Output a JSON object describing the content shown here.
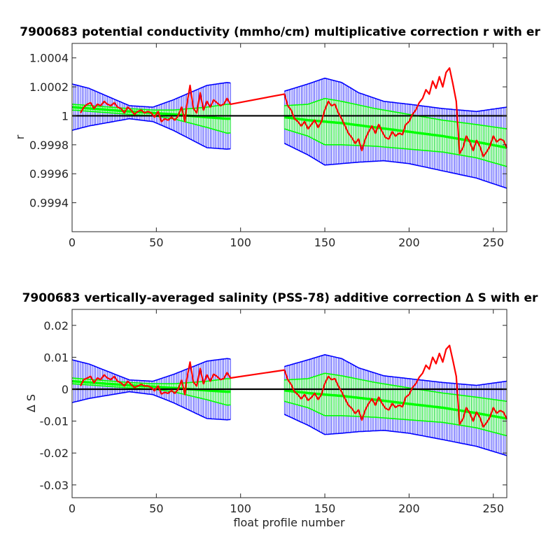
{
  "chart_data": [
    {
      "type": "line",
      "title": "7900683 potential conductivity (mmho/cm) multiplicative correction r with er",
      "xlabel": "",
      "ylabel": "r",
      "xlim": [
        0,
        258
      ],
      "ylim": [
        0.9992,
        1.0005
      ],
      "x_ticks": [
        0,
        50,
        100,
        150,
        200,
        250
      ],
      "x_tick_labels": [
        "0",
        "50",
        "100",
        "150",
        "200",
        "250"
      ],
      "y_ticks": [
        0.9994,
        0.9996,
        0.9998,
        1.0,
        1.0002,
        1.0004
      ],
      "y_tick_labels": [
        "0.9994",
        "0.9996",
        "0.9998",
        "1",
        "1.0002",
        "1.0004"
      ],
      "grid": false,
      "reference_line": 1.0,
      "colors": {
        "raw": "#ff0000",
        "fit": "#00ff00",
        "error": "#0000ff",
        "reference": "#000000"
      },
      "series": [
        {
          "role": "raw",
          "x": [
            5,
            7,
            9,
            11,
            13,
            15,
            17,
            19,
            21,
            23,
            25,
            27,
            29,
            31,
            33,
            35,
            37,
            39,
            41,
            43,
            45,
            47,
            49,
            51,
            53,
            55,
            57,
            59,
            61,
            63,
            65,
            67,
            68,
            70,
            72,
            74,
            76,
            78,
            80,
            82,
            84,
            86,
            88,
            90,
            92,
            94,
            126,
            128,
            130,
            132,
            134,
            136,
            138,
            140,
            142,
            144,
            146,
            148,
            150,
            152,
            154,
            156,
            158,
            160,
            162,
            164,
            166,
            168,
            170,
            172,
            174,
            176,
            178,
            180,
            182,
            184,
            186,
            188,
            190,
            192,
            194,
            196,
            198,
            200,
            202,
            204,
            206,
            208,
            210,
            212,
            214,
            216,
            218,
            220,
            222,
            224,
            226,
            228,
            230,
            232,
            234,
            236,
            238,
            240,
            242,
            244,
            246,
            248,
            250,
            252,
            254,
            256,
            258
          ],
          "values": [
            1.00002,
            1.00006,
            1.00008,
            1.00009,
            1.00005,
            1.00008,
            1.00007,
            1.0001,
            1.00008,
            1.00007,
            1.00009,
            1.00006,
            1.00005,
            1.00002,
            1.00006,
            1.00004,
            1.00001,
            1.00003,
            1.00004,
            1.00002,
            1.00003,
            1.00002,
            0.99999,
            1.00003,
            0.99996,
            0.99998,
            0.99997,
            0.99999,
            0.99997,
            1.0,
            1.00006,
            0.99996,
            1.00007,
            1.00021,
            1.00005,
            1.00002,
            1.00016,
            1.00004,
            1.0001,
            1.00006,
            1.00011,
            1.00009,
            1.00007,
            1.00008,
            1.00012,
            1.00008,
            1.00015,
            1.00007,
            1.00004,
            0.99998,
            0.99996,
            0.99993,
            0.99996,
            0.99991,
            0.99994,
            0.99997,
            0.99992,
            0.99996,
            1.00004,
            1.0001,
            1.00007,
            1.00008,
            1.00002,
            0.99998,
            0.99993,
            0.99988,
            0.99985,
            0.99981,
            0.99984,
            0.99976,
            0.99984,
            0.99989,
            0.99993,
            0.99988,
            0.99994,
            0.99989,
            0.99985,
            0.99984,
            0.99989,
            0.99986,
            0.99988,
            0.99987,
            0.99994,
            0.99996,
            1.00001,
            1.00004,
            1.00009,
            1.00012,
            1.00018,
            1.00015,
            1.00024,
            1.00019,
            1.00027,
            1.0002,
            1.0003,
            1.00033,
            1.00022,
            1.0001,
            0.99974,
            0.99978,
            0.99986,
            0.99982,
            0.99976,
            0.99983,
            0.99979,
            0.99972,
            0.99975,
            0.99979,
            0.99986,
            0.99982,
            0.99984,
            0.99983,
            0.99978
          ]
        },
        {
          "role": "fit",
          "x": [
            0,
            34,
            48,
            60,
            80,
            92,
            126,
            140,
            150,
            160,
            180,
            200,
            220,
            240,
            258
          ],
          "values": [
            1.00006,
            1.00003,
            1.00002,
            1.00001,
            0.99999,
            0.99998,
            0.99999,
            0.99997,
            0.99996,
            0.99995,
            0.99992,
            0.99989,
            0.99986,
            0.99982,
            0.99978
          ]
        },
        {
          "role": "fit_upper",
          "x": [
            0,
            34,
            48,
            60,
            80,
            92,
            126,
            140,
            150,
            160,
            180,
            200,
            220,
            240,
            258
          ],
          "values": [
            1.00008,
            1.00005,
            1.00004,
            1.00004,
            1.00006,
            1.00008,
            1.00007,
            1.00008,
            1.00012,
            1.0001,
            1.00005,
            1.00001,
            0.99997,
            0.99994,
            0.99991
          ]
        },
        {
          "role": "fit_lower",
          "x": [
            0,
            34,
            48,
            60,
            80,
            92,
            126,
            140,
            150,
            160,
            180,
            200,
            220,
            240,
            258
          ],
          "values": [
            1.00004,
            1.00001,
            1.0,
            0.99998,
            0.99992,
            0.99988,
            0.99991,
            0.99986,
            0.9998,
            0.9998,
            0.99979,
            0.99977,
            0.99975,
            0.99971,
            0.99965
          ]
        },
        {
          "role": "error_upper",
          "x": [
            0,
            10,
            34,
            48,
            60,
            70,
            80,
            92,
            126,
            140,
            150,
            160,
            170,
            185,
            200,
            220,
            240,
            258
          ],
          "values": [
            1.00022,
            1.00019,
            1.00007,
            1.00006,
            1.00011,
            1.00016,
            1.00021,
            1.00023,
            1.00017,
            1.00022,
            1.00026,
            1.00023,
            1.00016,
            1.0001,
            1.00008,
            1.00005,
            1.00003,
            1.00006
          ]
        },
        {
          "role": "error_lower",
          "x": [
            0,
            10,
            34,
            48,
            60,
            70,
            80,
            92,
            126,
            140,
            150,
            160,
            170,
            185,
            200,
            220,
            240,
            258
          ],
          "values": [
            0.9999,
            0.99993,
            0.99998,
            0.99996,
            0.9999,
            0.99984,
            0.99978,
            0.99977,
            0.99981,
            0.99973,
            0.99966,
            0.99967,
            0.99968,
            0.99969,
            0.99967,
            0.99962,
            0.99957,
            0.9995
          ]
        }
      ]
    },
    {
      "type": "line",
      "title": "7900683 vertically-averaged salinity (PSS-78) additive correction ∆ S with er",
      "xlabel": "float profile number",
      "ylabel": "∆ S",
      "xlim": [
        0,
        258
      ],
      "ylim": [
        -0.034,
        0.025
      ],
      "x_ticks": [
        0,
        50,
        100,
        150,
        200,
        250
      ],
      "x_tick_labels": [
        "0",
        "50",
        "100",
        "150",
        "200",
        "250"
      ],
      "y_ticks": [
        -0.03,
        -0.02,
        -0.01,
        0,
        0.01,
        0.02
      ],
      "y_tick_labels": [
        "-0.03",
        "-0.02",
        "-0.01",
        "0",
        "0.01",
        "0.02"
      ],
      "grid": false,
      "reference_line": 0,
      "colors": {
        "raw": "#ff0000",
        "fit": "#00ff00",
        "error": "#0000ff",
        "reference": "#000000"
      },
      "series": [
        {
          "role": "raw",
          "x": [
            5,
            7,
            9,
            11,
            13,
            15,
            17,
            19,
            21,
            23,
            25,
            27,
            29,
            31,
            33,
            35,
            37,
            39,
            41,
            43,
            45,
            47,
            49,
            51,
            53,
            55,
            57,
            59,
            61,
            63,
            65,
            67,
            68,
            70,
            72,
            74,
            76,
            78,
            80,
            82,
            84,
            86,
            88,
            90,
            92,
            94,
            126,
            128,
            130,
            132,
            134,
            136,
            138,
            140,
            142,
            144,
            146,
            148,
            150,
            152,
            154,
            156,
            158,
            160,
            162,
            164,
            166,
            168,
            170,
            172,
            174,
            176,
            178,
            180,
            182,
            184,
            186,
            188,
            190,
            192,
            194,
            196,
            198,
            200,
            202,
            204,
            206,
            208,
            210,
            212,
            214,
            216,
            218,
            220,
            222,
            224,
            226,
            228,
            230,
            232,
            234,
            236,
            238,
            240,
            242,
            244,
            246,
            248,
            250,
            252,
            254,
            256,
            258
          ],
          "values": [
            0.001,
            0.003,
            0.0035,
            0.004,
            0.002,
            0.0035,
            0.003,
            0.0045,
            0.0035,
            0.003,
            0.004,
            0.0025,
            0.002,
            0.001,
            0.0025,
            0.0015,
            0.0005,
            0.001,
            0.0015,
            0.001,
            0.001,
            0.0005,
            -0.0005,
            0.001,
            -0.0015,
            -0.001,
            -0.0013,
            -0.0004,
            -0.0013,
            0.0,
            0.0028,
            -0.0017,
            0.003,
            0.0085,
            0.0022,
            0.001,
            0.0065,
            0.0017,
            0.0045,
            0.0025,
            0.0047,
            0.004,
            0.003,
            0.0033,
            0.0052,
            0.0035,
            0.006,
            0.003,
            0.0015,
            -0.0008,
            -0.0017,
            -0.003,
            -0.0017,
            -0.0035,
            -0.0026,
            -0.0013,
            -0.0032,
            -0.0017,
            0.0017,
            0.004,
            0.003,
            0.0033,
            0.001,
            -0.0008,
            -0.003,
            -0.005,
            -0.006,
            -0.0076,
            -0.0065,
            -0.0097,
            -0.0065,
            -0.0045,
            -0.003,
            -0.005,
            -0.0025,
            -0.0045,
            -0.006,
            -0.0065,
            -0.0045,
            -0.0057,
            -0.005,
            -0.0055,
            -0.0025,
            -0.0017,
            0.0005,
            0.0017,
            0.0037,
            0.005,
            0.0075,
            0.0063,
            0.01,
            0.008,
            0.0112,
            0.0085,
            0.0125,
            0.0137,
            0.009,
            0.004,
            -0.011,
            -0.0093,
            -0.0058,
            -0.0075,
            -0.01,
            -0.0072,
            -0.0088,
            -0.0118,
            -0.0105,
            -0.0088,
            -0.0058,
            -0.0075,
            -0.0067,
            -0.0072,
            -0.0093
          ]
        },
        {
          "role": "fit",
          "x": [
            0,
            34,
            48,
            60,
            80,
            92,
            126,
            140,
            150,
            160,
            180,
            200,
            220,
            240,
            258
          ],
          "values": [
            0.0025,
            0.0012,
            0.0008,
            0.0004,
            -0.0004,
            -0.0008,
            -0.0004,
            -0.0012,
            -0.0017,
            -0.0021,
            -0.0033,
            -0.0046,
            -0.0058,
            -0.0075,
            -0.0092
          ]
        },
        {
          "role": "fit_upper",
          "x": [
            0,
            34,
            48,
            60,
            80,
            92,
            126,
            140,
            150,
            160,
            180,
            200,
            220,
            240,
            258
          ],
          "values": [
            0.0035,
            0.0021,
            0.0017,
            0.0017,
            0.0025,
            0.0033,
            0.0029,
            0.0033,
            0.005,
            0.0042,
            0.0021,
            0.0004,
            -0.0012,
            -0.0025,
            -0.0038
          ]
        },
        {
          "role": "fit_lower",
          "x": [
            0,
            34,
            48,
            60,
            80,
            92,
            126,
            140,
            150,
            160,
            180,
            200,
            220,
            240,
            258
          ],
          "values": [
            0.0017,
            0.0004,
            0.0,
            -0.0008,
            -0.0033,
            -0.005,
            -0.0038,
            -0.0058,
            -0.0083,
            -0.0083,
            -0.0088,
            -0.0096,
            -0.0104,
            -0.0121,
            -0.0146
          ]
        },
        {
          "role": "error_upper",
          "x": [
            0,
            10,
            34,
            48,
            60,
            70,
            80,
            92,
            126,
            140,
            150,
            160,
            170,
            185,
            200,
            220,
            240,
            258
          ],
          "values": [
            0.0092,
            0.0079,
            0.0029,
            0.0025,
            0.0046,
            0.0067,
            0.0088,
            0.0096,
            0.0071,
            0.0092,
            0.0108,
            0.0096,
            0.0067,
            0.0042,
            0.0033,
            0.0021,
            0.0012,
            0.0025
          ]
        },
        {
          "role": "error_lower",
          "x": [
            0,
            10,
            34,
            48,
            60,
            70,
            80,
            92,
            126,
            140,
            150,
            160,
            170,
            185,
            200,
            220,
            240,
            258
          ],
          "values": [
            -0.0042,
            -0.0029,
            -0.0008,
            -0.0017,
            -0.0042,
            -0.0067,
            -0.0092,
            -0.0096,
            -0.0079,
            -0.0113,
            -0.0142,
            -0.0138,
            -0.0133,
            -0.0129,
            -0.0138,
            -0.0158,
            -0.0179,
            -0.0208
          ]
        }
      ]
    }
  ]
}
